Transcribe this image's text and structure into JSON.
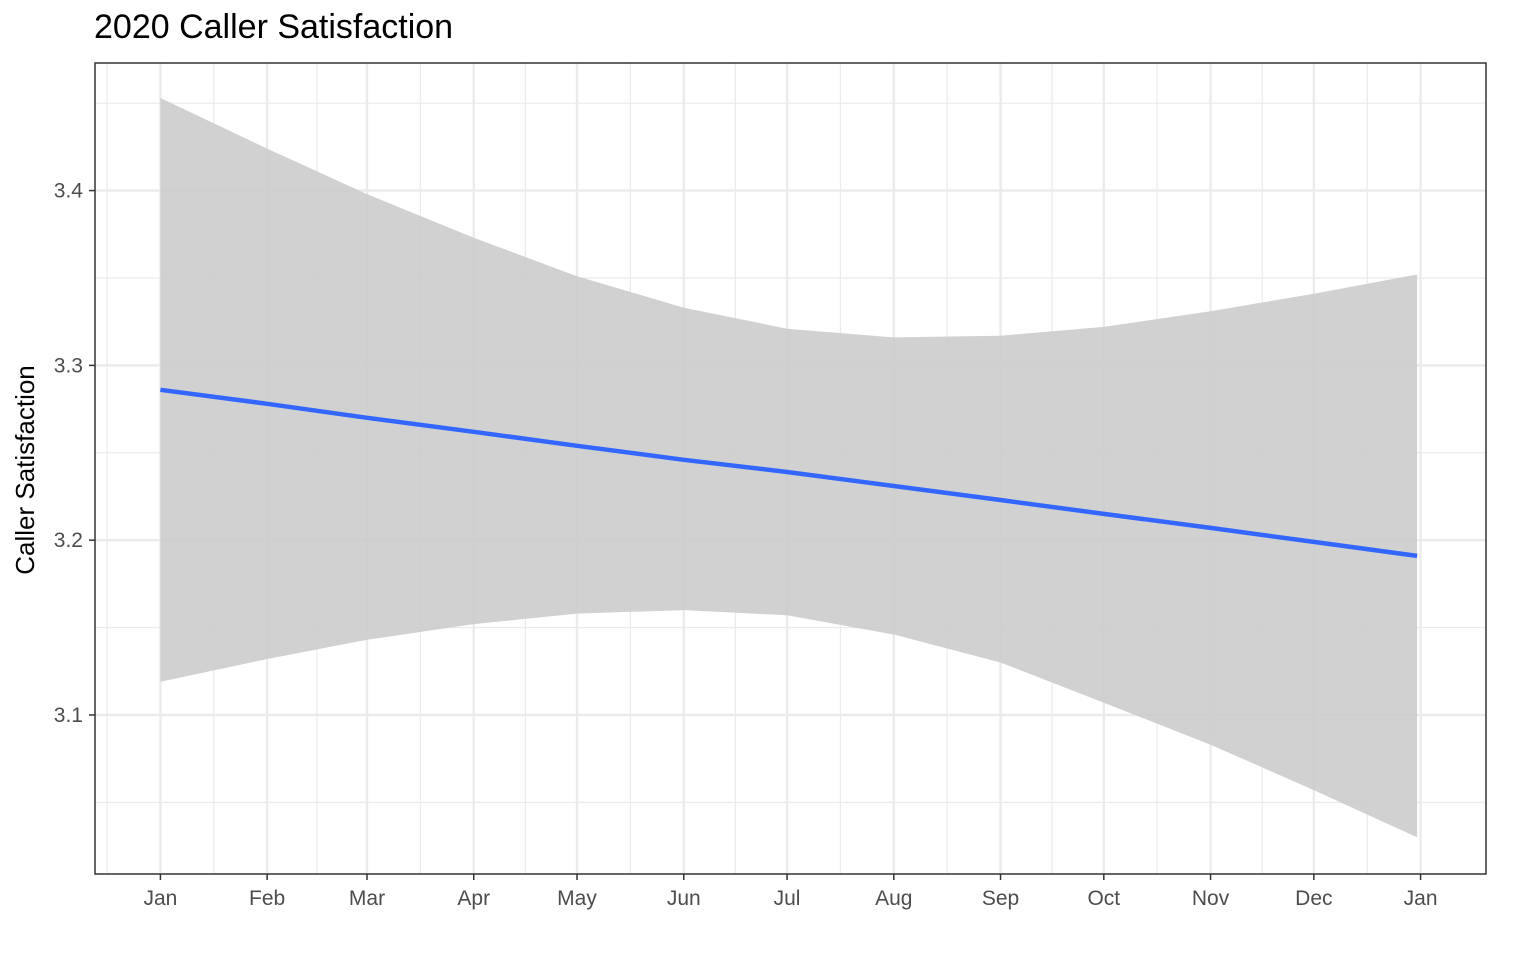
{
  "chart_data": {
    "type": "line",
    "title": "2020 Caller Satisfaction",
    "xlabel": "",
    "ylabel": "Caller Satisfaction",
    "x_ticks": [
      "2020-01-01",
      "2020-02-01",
      "2020-03-01",
      "2020-04-01",
      "2020-05-01",
      "2020-06-01",
      "2020-07-01",
      "2020-08-01",
      "2020-09-01",
      "2020-10-01",
      "2020-11-01",
      "2020-12-01",
      "2021-01-01"
    ],
    "x_tick_labels": [
      "Jan",
      "Feb",
      "Mar",
      "Apr",
      "May",
      "Jun",
      "Jul",
      "Aug",
      "Sep",
      "Oct",
      "Nov",
      "Dec",
      "Jan"
    ],
    "x_range": [
      "2019-12-13",
      "2021-01-20"
    ],
    "y_ticks": [
      3.1,
      3.2,
      3.3,
      3.4
    ],
    "y_tick_labels": [
      "3.1",
      "3.2",
      "3.3",
      "3.4"
    ],
    "ylim": [
      3.009,
      3.473
    ],
    "grid": true,
    "series": [
      {
        "color": "#3366FF",
        "x": [
          "2020-01-01",
          "2020-02-01",
          "2020-03-01",
          "2020-04-01",
          "2020-05-01",
          "2020-06-01",
          "2020-07-01",
          "2020-08-01",
          "2020-09-01",
          "2020-10-01",
          "2020-11-01",
          "2020-12-01",
          "2020-12-31"
        ],
        "y": [
          3.286,
          3.278,
          3.27,
          3.262,
          3.254,
          3.246,
          3.239,
          3.231,
          3.223,
          3.215,
          3.207,
          3.199,
          3.191
        ],
        "ci_lower": [
          3.119,
          3.132,
          3.143,
          3.152,
          3.158,
          3.16,
          3.157,
          3.146,
          3.13,
          3.107,
          3.083,
          3.057,
          3.03
        ],
        "ci_upper": [
          3.453,
          3.424,
          3.398,
          3.373,
          3.351,
          3.333,
          3.321,
          3.316,
          3.317,
          3.322,
          3.331,
          3.341,
          3.352
        ]
      }
    ],
    "ribbon_color": "#CCCCCC",
    "panel_border": "#333333",
    "grid_color": "#EBEBEB"
  }
}
